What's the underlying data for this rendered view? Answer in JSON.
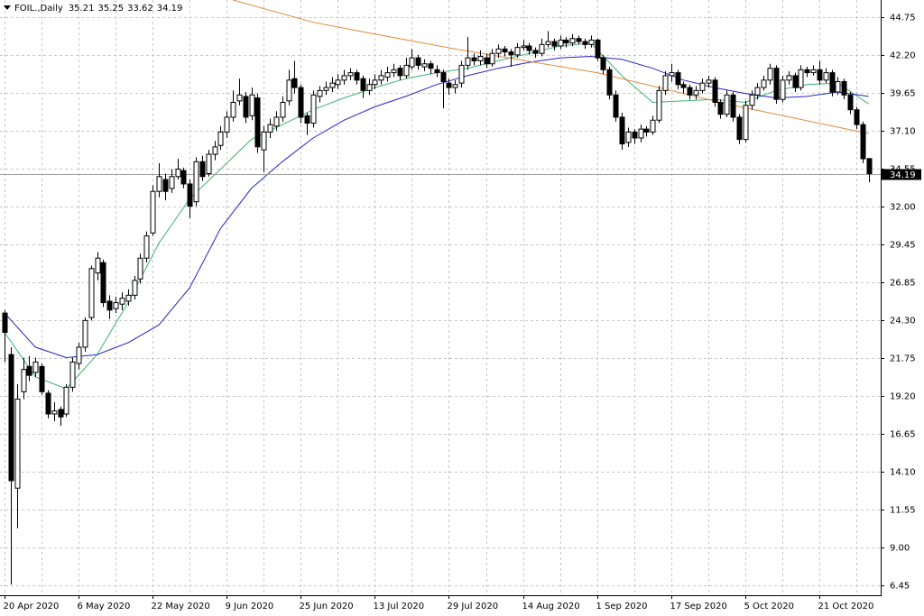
{
  "chart_data": {
    "type": "candlestick",
    "symbol": "FOIL.,Daily",
    "categories": [
      "20 Apr 2020",
      null,
      null,
      null,
      null,
      null,
      null,
      null,
      null,
      null,
      null,
      null,
      "6 May 2020",
      null,
      null,
      null,
      null,
      null,
      null,
      null,
      null,
      null,
      null,
      null,
      "22 May 2020",
      null,
      null,
      null,
      null,
      null,
      null,
      null,
      null,
      null,
      null,
      null,
      "9 Jun 2020",
      null,
      null,
      null,
      null,
      null,
      null,
      null,
      null,
      null,
      null,
      null,
      "25 Jun 2020",
      null,
      null,
      null,
      null,
      null,
      null,
      null,
      null,
      null,
      null,
      null,
      "13 Jul 2020",
      null,
      null,
      null,
      null,
      null,
      null,
      null,
      null,
      null,
      null,
      null,
      "29 Jul 2020",
      null,
      null,
      null,
      null,
      null,
      null,
      null,
      null,
      null,
      null,
      null,
      "14 Aug 2020",
      null,
      null,
      null,
      null,
      null,
      null,
      null,
      null,
      null,
      null,
      null,
      "1 Sep 2020",
      null,
      null,
      null,
      null,
      null,
      null,
      null,
      null,
      null,
      null,
      null,
      "17 Sep 2020",
      null,
      null,
      null,
      null,
      null,
      null,
      null,
      null,
      null,
      null,
      null,
      "5 Oct 2020",
      null,
      null,
      null,
      null,
      null,
      null,
      null,
      null,
      null,
      null,
      null,
      "21 Oct 2020",
      null,
      null,
      null,
      null,
      null,
      null,
      null,
      null
    ],
    "ohlc": [
      [
        24.8,
        25.0,
        21.5,
        23.5
      ],
      [
        22.0,
        22.5,
        6.5,
        13.5
      ],
      [
        13.0,
        20.0,
        10.3,
        19.0
      ],
      [
        19.5,
        21.8,
        19.0,
        21.0
      ],
      [
        21.2,
        21.9,
        20.2,
        20.6
      ],
      [
        20.8,
        21.8,
        20.5,
        21.5
      ],
      [
        21.2,
        21.4,
        19.3,
        19.5
      ],
      [
        19.4,
        19.6,
        17.7,
        18.0
      ],
      [
        18.0,
        18.8,
        17.5,
        18.2
      ],
      [
        18.3,
        18.5,
        17.2,
        17.8
      ],
      [
        18.0,
        20.0,
        17.8,
        19.8
      ],
      [
        19.8,
        21.8,
        19.5,
        21.5
      ],
      [
        21.4,
        22.8,
        21.0,
        22.5
      ],
      [
        22.5,
        24.5,
        22.2,
        24.3
      ],
      [
        24.5,
        28.0,
        24.3,
        27.8
      ],
      [
        27.5,
        28.9,
        27.0,
        28.5
      ],
      [
        28.2,
        28.4,
        25.2,
        25.5
      ],
      [
        25.6,
        26.0,
        24.4,
        25.0
      ],
      [
        25.1,
        25.9,
        24.8,
        25.5
      ],
      [
        25.4,
        26.2,
        25.0,
        25.8
      ],
      [
        25.6,
        26.4,
        25.3,
        26.0
      ],
      [
        26.0,
        27.3,
        25.7,
        27.0
      ],
      [
        27.1,
        28.8,
        26.8,
        28.5
      ],
      [
        28.5,
        30.3,
        28.2,
        30.0
      ],
      [
        30.2,
        33.4,
        30.0,
        33.0
      ],
      [
        33.0,
        34.9,
        32.6,
        34.0
      ],
      [
        33.8,
        34.2,
        32.4,
        33.0
      ],
      [
        33.2,
        34.5,
        32.9,
        34.0
      ],
      [
        34.0,
        35.2,
        33.8,
        34.5
      ],
      [
        34.4,
        34.6,
        33.2,
        33.5
      ],
      [
        33.5,
        33.8,
        31.2,
        32.0
      ],
      [
        32.3,
        35.3,
        32.0,
        35.0
      ],
      [
        35.0,
        35.4,
        33.7,
        34.0
      ],
      [
        34.2,
        35.8,
        34.0,
        35.5
      ],
      [
        35.5,
        36.4,
        35.1,
        36.0
      ],
      [
        36.1,
        37.4,
        35.8,
        37.0
      ],
      [
        37.0,
        38.4,
        36.6,
        38.0
      ],
      [
        38.0,
        39.8,
        37.7,
        39.0
      ],
      [
        39.1,
        40.6,
        38.8,
        39.5
      ],
      [
        39.4,
        39.7,
        37.6,
        38.0
      ],
      [
        38.1,
        40.0,
        37.8,
        39.5
      ],
      [
        39.3,
        39.6,
        35.6,
        36.0
      ],
      [
        35.8,
        37.4,
        34.3,
        37.0
      ],
      [
        37.0,
        37.9,
        36.6,
        37.5
      ],
      [
        37.4,
        38.4,
        37.1,
        38.0
      ],
      [
        38.0,
        39.4,
        37.7,
        39.0
      ],
      [
        39.1,
        41.2,
        38.8,
        40.5
      ],
      [
        40.6,
        41.8,
        39.6,
        40.0
      ],
      [
        40.0,
        40.2,
        37.6,
        38.0
      ],
      [
        38.1,
        38.3,
        36.8,
        37.6
      ],
      [
        37.6,
        39.8,
        37.3,
        39.5
      ],
      [
        39.4,
        40.1,
        39.0,
        39.8
      ],
      [
        39.8,
        40.4,
        39.5,
        40.0
      ],
      [
        40.0,
        40.7,
        39.7,
        40.3
      ],
      [
        40.2,
        40.9,
        39.9,
        40.5
      ],
      [
        40.5,
        41.2,
        40.2,
        40.8
      ],
      [
        40.8,
        41.3,
        40.5,
        41.0
      ],
      [
        41.0,
        41.2,
        40.2,
        40.5
      ],
      [
        40.6,
        40.8,
        39.3,
        39.8
      ],
      [
        39.8,
        40.6,
        39.5,
        40.2
      ],
      [
        40.2,
        40.9,
        39.9,
        40.5
      ],
      [
        40.5,
        41.2,
        40.2,
        40.8
      ],
      [
        40.7,
        41.4,
        40.4,
        41.0
      ],
      [
        41.0,
        41.6,
        40.7,
        41.2
      ],
      [
        41.3,
        41.5,
        40.5,
        40.8
      ],
      [
        40.8,
        42.0,
        40.6,
        41.5
      ],
      [
        41.4,
        42.6,
        41.2,
        42.0
      ],
      [
        42.0,
        42.2,
        41.2,
        41.5
      ],
      [
        41.4,
        41.9,
        41.1,
        41.6
      ],
      [
        41.6,
        41.8,
        40.9,
        41.3
      ],
      [
        41.2,
        41.5,
        40.7,
        41.0
      ],
      [
        41.0,
        41.2,
        38.6,
        40.4
      ],
      [
        40.3,
        40.6,
        39.5,
        40.0
      ],
      [
        40.0,
        40.5,
        39.6,
        40.2
      ],
      [
        40.3,
        41.8,
        40.0,
        41.5
      ],
      [
        41.5,
        43.4,
        41.2,
        42.0
      ],
      [
        42.0,
        42.3,
        41.5,
        41.8
      ],
      [
        41.8,
        42.5,
        41.5,
        42.1
      ],
      [
        42.0,
        42.3,
        41.3,
        41.6
      ],
      [
        41.6,
        42.6,
        41.4,
        42.3
      ],
      [
        42.3,
        42.9,
        42.0,
        42.6
      ],
      [
        42.6,
        42.8,
        42.1,
        42.4
      ],
      [
        42.4,
        42.6,
        41.4,
        42.2
      ],
      [
        42.2,
        43.0,
        42.0,
        42.7
      ],
      [
        42.7,
        43.2,
        42.5,
        42.8
      ],
      [
        42.8,
        43.0,
        42.2,
        42.5
      ],
      [
        42.5,
        42.7,
        42.0,
        42.3
      ],
      [
        42.3,
        43.3,
        42.1,
        42.9
      ],
      [
        42.9,
        43.8,
        42.7,
        43.1
      ],
      [
        43.1,
        43.3,
        42.5,
        42.8
      ],
      [
        42.8,
        43.5,
        42.6,
        43.2
      ],
      [
        43.2,
        43.4,
        42.7,
        43.0
      ],
      [
        43.0,
        43.6,
        42.8,
        43.3
      ],
      [
        43.3,
        43.5,
        42.9,
        43.1
      ],
      [
        43.1,
        43.3,
        42.6,
        42.9
      ],
      [
        42.9,
        43.5,
        42.7,
        43.2
      ],
      [
        43.2,
        43.3,
        41.8,
        42.0
      ],
      [
        42.0,
        42.2,
        40.9,
        41.2
      ],
      [
        41.2,
        41.4,
        39.2,
        39.5
      ],
      [
        39.5,
        39.8,
        37.7,
        38.0
      ],
      [
        38.0,
        38.3,
        35.8,
        36.2
      ],
      [
        36.3,
        37.3,
        36.0,
        37.0
      ],
      [
        37.0,
        37.2,
        36.2,
        36.6
      ],
      [
        36.6,
        37.5,
        36.3,
        37.2
      ],
      [
        37.2,
        37.4,
        36.7,
        37.0
      ],
      [
        37.0,
        38.1,
        36.8,
        37.8
      ],
      [
        37.8,
        40.1,
        37.6,
        39.8
      ],
      [
        39.8,
        41.1,
        39.5,
        40.8
      ],
      [
        40.8,
        41.6,
        40.4,
        41.0
      ],
      [
        41.0,
        41.2,
        39.9,
        40.2
      ],
      [
        40.2,
        40.4,
        39.6,
        40.0
      ],
      [
        40.0,
        40.2,
        39.2,
        39.5
      ],
      [
        39.5,
        40.1,
        39.2,
        39.8
      ],
      [
        39.8,
        40.6,
        39.6,
        40.3
      ],
      [
        40.3,
        40.8,
        40.0,
        40.5
      ],
      [
        40.5,
        40.7,
        38.7,
        39.0
      ],
      [
        39.0,
        39.2,
        37.9,
        38.2
      ],
      [
        38.2,
        39.8,
        38.0,
        39.5
      ],
      [
        39.5,
        39.7,
        37.7,
        38.0
      ],
      [
        38.0,
        38.2,
        36.2,
        36.5
      ],
      [
        36.5,
        39.1,
        36.3,
        38.8
      ],
      [
        38.8,
        39.8,
        38.5,
        39.5
      ],
      [
        39.5,
        40.3,
        39.2,
        40.0
      ],
      [
        40.0,
        40.8,
        39.8,
        40.5
      ],
      [
        40.5,
        41.6,
        40.2,
        41.3
      ],
      [
        41.3,
        41.5,
        38.9,
        39.2
      ],
      [
        39.2,
        40.8,
        39.0,
        40.5
      ],
      [
        40.5,
        41.1,
        40.2,
        40.8
      ],
      [
        40.8,
        41.0,
        39.7,
        40.0
      ],
      [
        40.0,
        41.5,
        39.8,
        41.2
      ],
      [
        41.2,
        41.4,
        40.7,
        41.0
      ],
      [
        41.0,
        41.5,
        40.8,
        41.2
      ],
      [
        41.2,
        41.8,
        40.2,
        40.5
      ],
      [
        40.5,
        41.3,
        40.3,
        41.0
      ],
      [
        41.0,
        41.2,
        39.4,
        39.7
      ],
      [
        39.7,
        40.7,
        39.5,
        40.4
      ],
      [
        40.4,
        40.6,
        39.2,
        39.5
      ],
      [
        39.5,
        39.7,
        38.2,
        38.5
      ],
      [
        38.5,
        38.7,
        37.2,
        37.5
      ],
      [
        37.5,
        37.7,
        34.9,
        35.2
      ],
      [
        35.21,
        35.25,
        33.62,
        34.19
      ]
    ],
    "lines": [
      {
        "color": "#3cb371",
        "x": [
          0,
          5,
          10,
          15,
          20,
          25,
          30,
          35,
          40,
          45,
          50,
          55,
          60,
          65,
          70,
          75,
          80,
          85,
          90,
          95,
          100,
          105,
          110,
          115,
          120,
          125,
          130,
          135,
          140
        ],
        "values": [
          23.5,
          20.5,
          19.7,
          22.0,
          25.5,
          29.5,
          32.5,
          34.5,
          36.5,
          37.5,
          38.5,
          39.3,
          40.0,
          40.6,
          41.0,
          41.3,
          41.8,
          42.3,
          42.8,
          43.0,
          40.8,
          39.0,
          39.1,
          39.2,
          39.0,
          39.8,
          40.2,
          40.3,
          38.9
        ]
      },
      {
        "color": "#2424c8",
        "x": [
          0,
          5,
          10,
          15,
          20,
          25,
          30,
          35,
          40,
          45,
          50,
          55,
          60,
          65,
          70,
          75,
          80,
          85,
          90,
          95,
          100,
          105,
          110,
          115,
          120,
          125,
          130,
          135,
          140
        ],
        "values": [
          24.8,
          22.5,
          21.8,
          22.0,
          22.8,
          24.0,
          26.5,
          30.5,
          33.2,
          35.0,
          36.6,
          37.8,
          38.7,
          39.4,
          40.2,
          40.8,
          41.3,
          41.7,
          42.0,
          42.1,
          41.9,
          41.3,
          40.5,
          40.0,
          39.6,
          39.3,
          39.4,
          39.7,
          39.4
        ]
      },
      {
        "color": "#e08a3c",
        "x": [
          37,
          50,
          60,
          73,
          96,
          117,
          140
        ],
        "values": [
          45.9,
          44.4,
          43.6,
          42.6,
          41.0,
          38.9,
          36.9
        ]
      }
    ],
    "up_color": "#ffffff",
    "down_color": "#000000",
    "ylim": [
      5.78,
      45.9
    ],
    "yticks": [
      44.75,
      {
        "value": 42.2,
        "label": "42.20"
      },
      39.65,
      {
        "value": 37.1,
        "label": "37.10"
      },
      34.55,
      {
        "value": 32,
        "label": "32.00"
      },
      29.45,
      26.85,
      {
        "value": 24.3,
        "label": "24.30"
      },
      21.75,
      {
        "value": 19.2,
        "label": "19.20"
      },
      16.65,
      {
        "value": 14.1,
        "label": "14.10"
      },
      11.55,
      {
        "value": 9,
        "label": "9.00"
      },
      6.45
    ],
    "grid": true
  }
}
